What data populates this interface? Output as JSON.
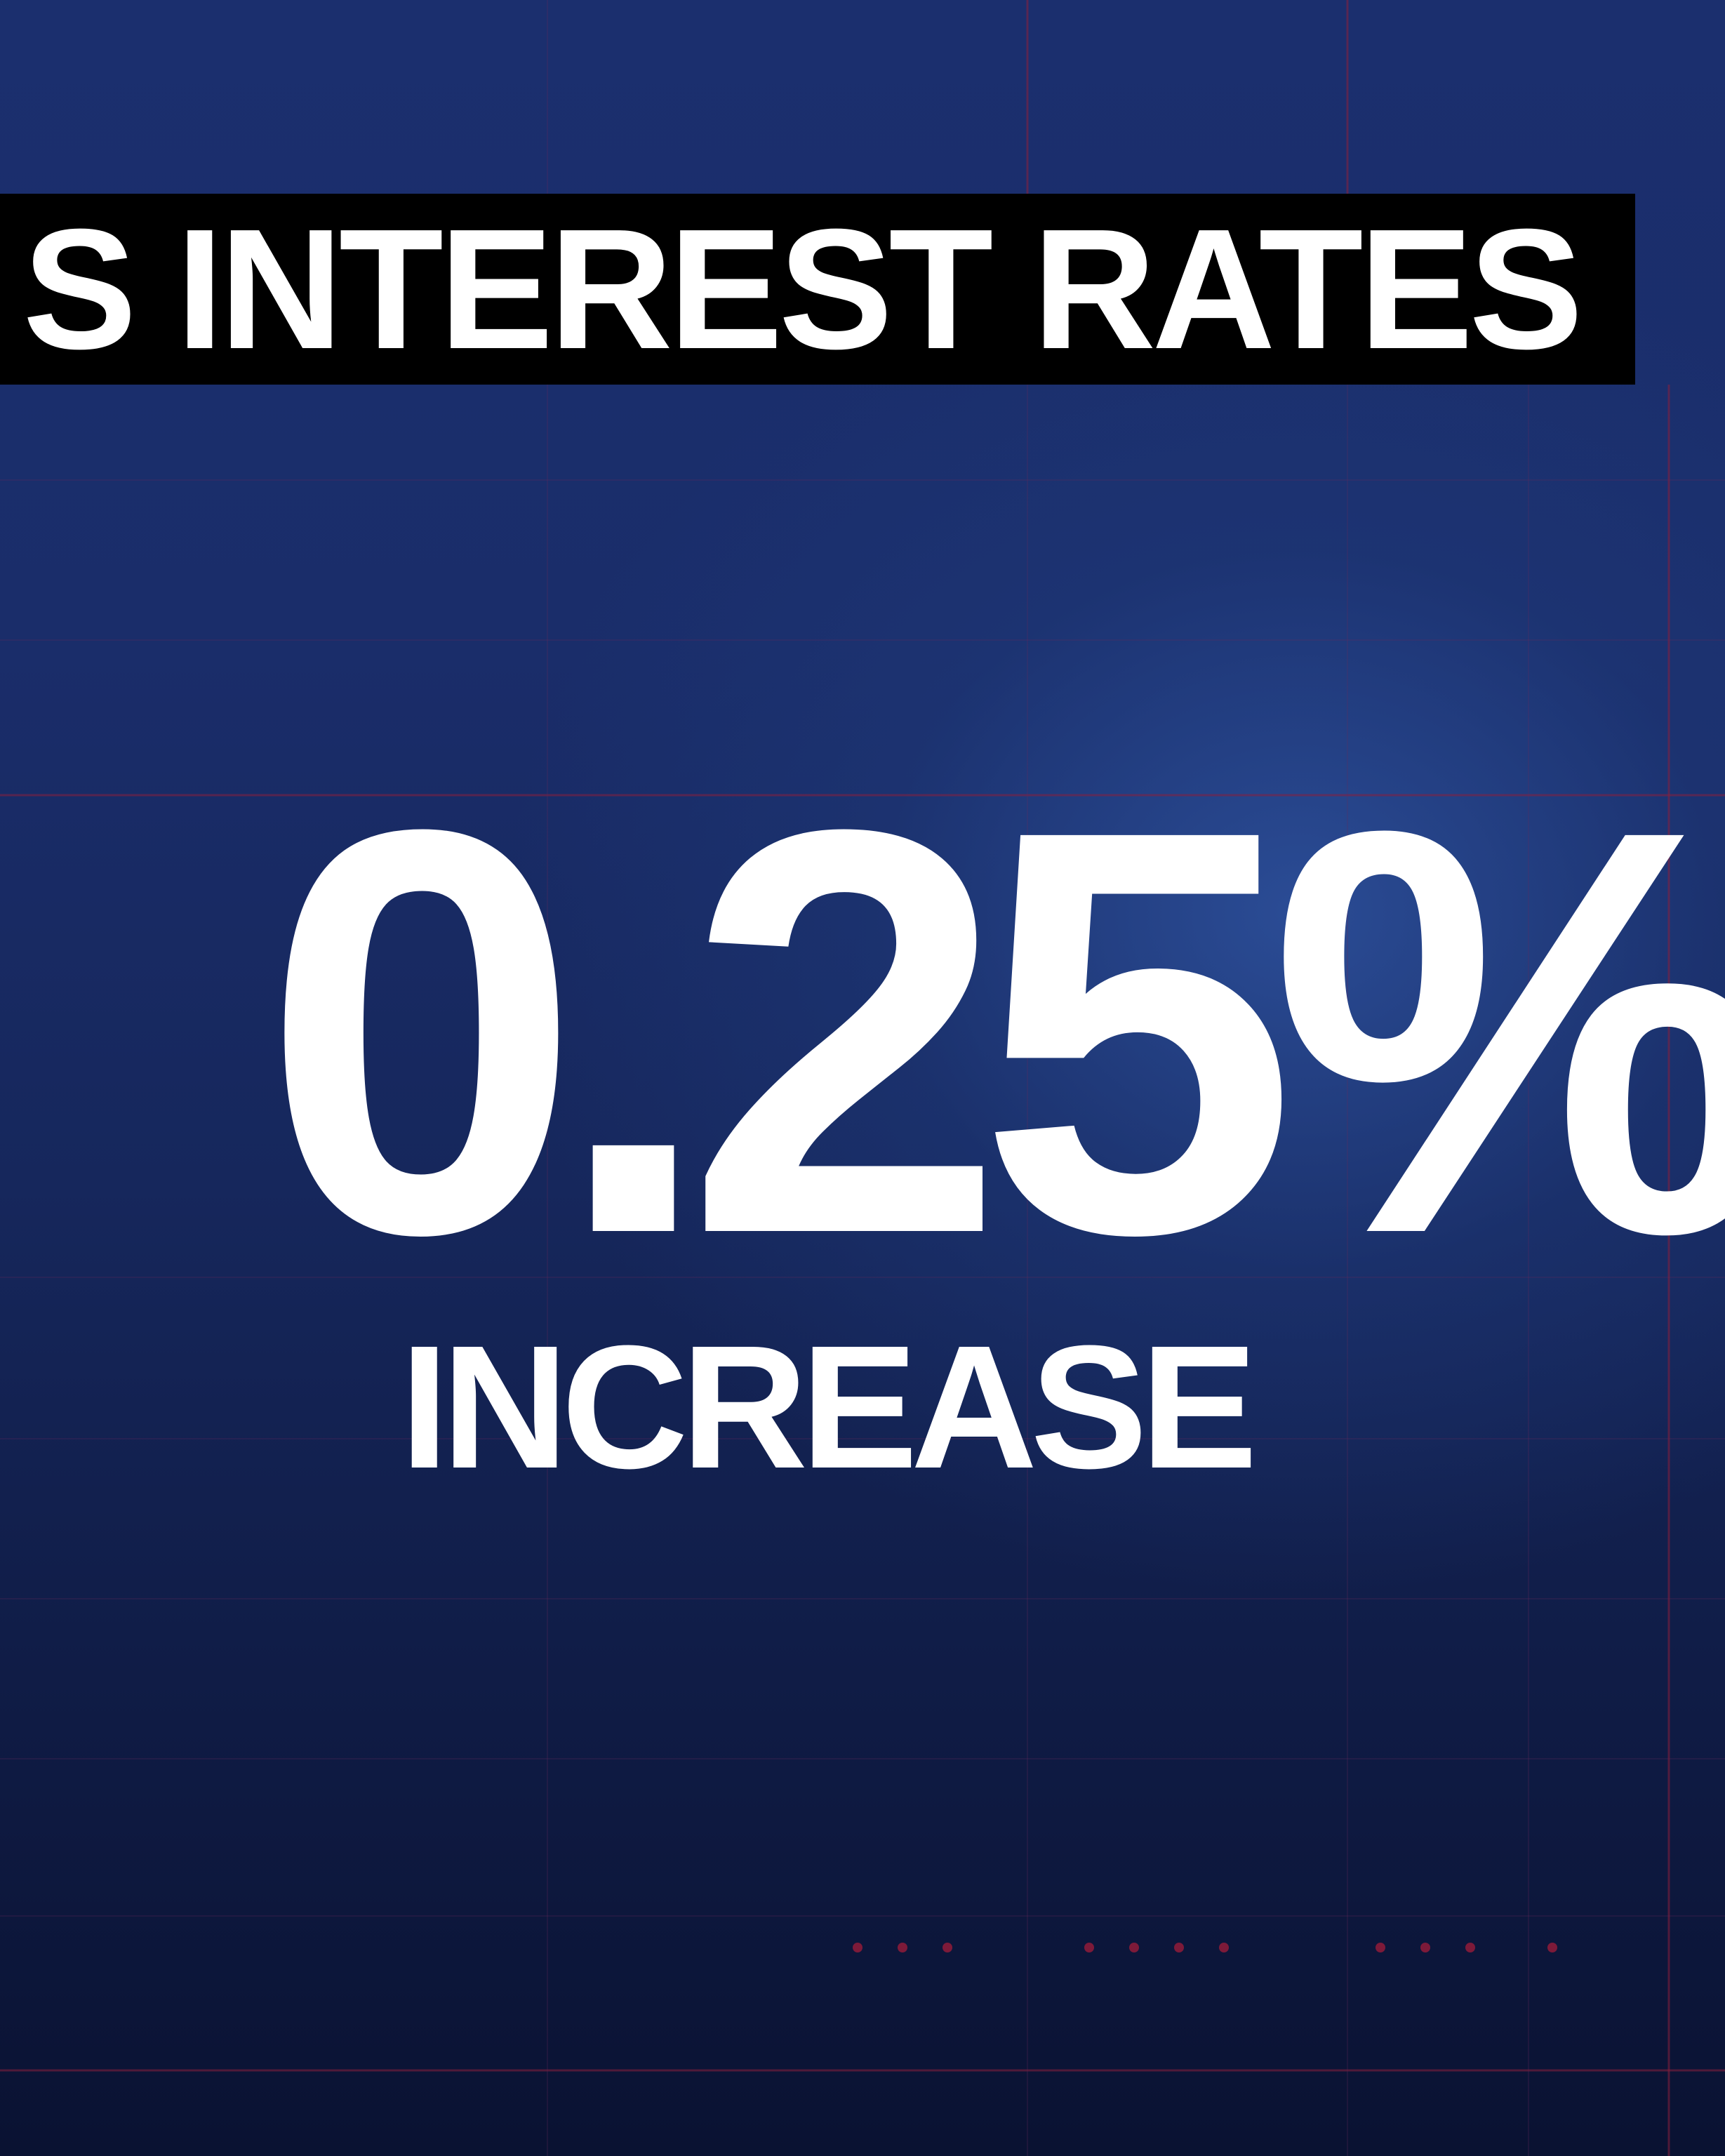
{
  "headline": {
    "text": "S INTEREST RATES"
  },
  "figure": {
    "value": "0.25%",
    "label": "INCREASE"
  },
  "colors": {
    "background": "#1b2f6e",
    "grid": "#8a1f3c",
    "headline_bar": "#000000",
    "text": "#ffffff"
  }
}
